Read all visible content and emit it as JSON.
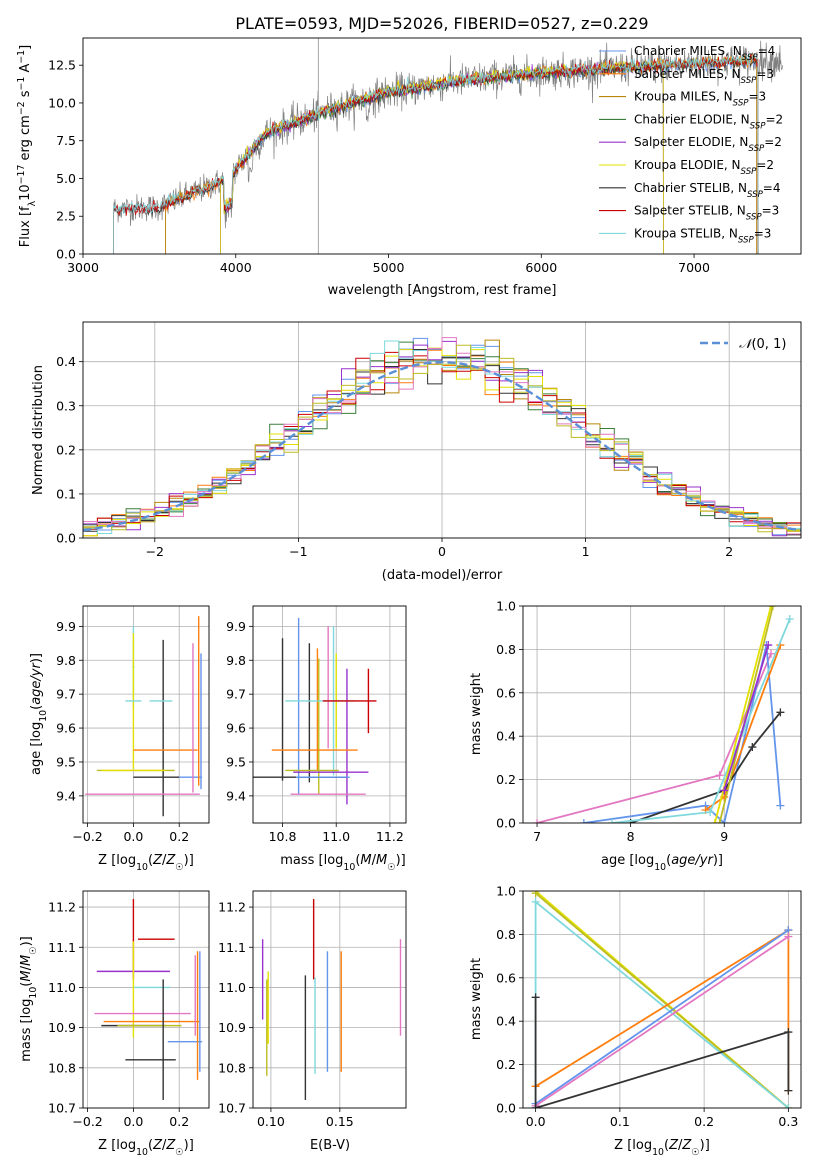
{
  "figure_title": "PLATE=0593, MJD=52026, FIBERID=0527, z=0.229",
  "chart_data": [
    {
      "id": "spectrum",
      "type": "line",
      "title": "PLATE=0593, MJD=52026, FIBERID=0527, z=0.229",
      "xlabel": "wavelength [Angstrom, rest frame]",
      "ylabel": "Flux [fλ 10⁻¹⁷ erg cm⁻² s⁻¹ A⁻¹]",
      "xlim": [
        3000,
        7700
      ],
      "ylim": [
        0,
        14.3
      ],
      "xticks": [
        3000,
        4000,
        5000,
        6000,
        7000
      ],
      "yticks": [
        0.0,
        2.5,
        5.0,
        7.5,
        10.0,
        12.5
      ],
      "grid": false,
      "legend_position": "upper-right",
      "series": [
        {
          "name": "Chabrier MILES, N_SSP=4",
          "color": "#6495ed",
          "range": [
            3540,
            7410
          ]
        },
        {
          "name": "Salpeter MILES, N_SSP=3",
          "color": "#ff7f0e",
          "range": [
            3540,
            7410
          ]
        },
        {
          "name": "Kroupa MILES, N_SSP=3",
          "color": "#b8860b",
          "range": [
            3540,
            7410
          ]
        },
        {
          "name": "Chabrier ELODIE, N_SSP=2",
          "color": "#3a7d3a",
          "range": [
            3900,
            6800
          ]
        },
        {
          "name": "Salpeter ELODIE, N_SSP=2",
          "color": "#9932cc",
          "range": [
            3900,
            6800
          ]
        },
        {
          "name": "Kroupa ELODIE, N_SSP=2",
          "color": "#e3e000",
          "range": [
            3900,
            6800
          ]
        },
        {
          "name": "Chabrier STELIB, N_SSP=4",
          "color": "#333333",
          "range": [
            3200,
            7420
          ]
        },
        {
          "name": "Salpeter STELIB, N_SSP=3",
          "color": "#cc0000",
          "range": [
            3200,
            7420
          ]
        },
        {
          "name": "Kroupa STELIB, N_SSP=3",
          "color": "#7fd8dc",
          "range": [
            3200,
            7420
          ]
        }
      ],
      "observed": {
        "color": "#808080",
        "range": [
          3200,
          7580
        ]
      },
      "continuum_shape": {
        "x": [
          3200,
          3500,
          3950,
          4200,
          4600,
          5000,
          5500,
          6000,
          6500,
          7000,
          7400
        ],
        "y": [
          3.0,
          3.1,
          5.0,
          8.0,
          9.5,
          10.7,
          11.5,
          12.0,
          12.3,
          12.6,
          12.8
        ]
      }
    },
    {
      "id": "residuals",
      "type": "histogram",
      "xlabel": "(data-model)/error",
      "ylabel": "Normed distribution",
      "xlim": [
        -2.5,
        2.5
      ],
      "ylim": [
        0,
        0.49
      ],
      "xticks": [
        -2,
        -1,
        0,
        1,
        2
      ],
      "yticks": [
        0.0,
        0.1,
        0.2,
        0.3,
        0.4
      ],
      "grid": true,
      "legend_position": "upper-right",
      "reference_curve": {
        "name": "𝒩(0, 1)",
        "color": "#5b8fd6"
      },
      "bin_edges_start": -2.5,
      "bin_width": 0.1,
      "series_colors": [
        "#6495ed",
        "#ff7f0e",
        "#b8860b",
        "#3a7d3a",
        "#9932cc",
        "#e3e000",
        "#333333",
        "#cc0000",
        "#7fd8dc",
        "#e377c2",
        "#bcbd22"
      ]
    },
    {
      "id": "age-vs-Z",
      "type": "errorbar",
      "xlabel": "Z [log10(Z/Z☉)]",
      "ylabel": "age [log10(age/yr)]",
      "xlim": [
        -0.22,
        0.33
      ],
      "ylim": [
        9.32,
        9.96
      ],
      "xticks": [
        -0.2,
        0.0,
        0.2
      ],
      "yticks": [
        9.4,
        9.5,
        9.6,
        9.7,
        9.8,
        9.9
      ],
      "grid": true,
      "points": [
        {
          "x": 0.0,
          "y": 9.78,
          "xerr": 0.005,
          "yerr": 0.12,
          "color": "#7fd8dc"
        },
        {
          "x": 0.0,
          "y": 9.68,
          "xerr": 0.0,
          "yerr": 0.2,
          "color": "#e3e000"
        },
        {
          "x": 0.13,
          "y": 9.6,
          "xerr": 0.0,
          "yerr": 0.26,
          "color": "#333333"
        },
        {
          "x": 0.0,
          "y": 9.68,
          "xerr": 0.035,
          "yerr": 0.0,
          "color": "#7fd8dc"
        },
        {
          "x": 0.12,
          "y": 9.68,
          "xerr": 0.05,
          "yerr": 0.0,
          "color": "#7fd8dc"
        },
        {
          "x": 0.14,
          "y": 9.535,
          "xerr": 0.14,
          "yerr": 0.0,
          "color": "#ff7f0e"
        },
        {
          "x": 0.01,
          "y": 9.475,
          "xerr": 0.17,
          "yerr": 0.0,
          "color": "#bcbd22"
        },
        {
          "x": 0.0,
          "y": 9.475,
          "xerr": 0.14,
          "yerr": 0.0,
          "color": "#e3e000"
        },
        {
          "x": 0.1,
          "y": 9.455,
          "xerr": 0.1,
          "yerr": 0.0,
          "color": "#333333"
        },
        {
          "x": 0.25,
          "y": 9.455,
          "xerr": 0.05,
          "yerr": 0.0,
          "color": "#6495ed"
        },
        {
          "x": 0.04,
          "y": 9.405,
          "xerr": 0.25,
          "yerr": 0.0,
          "color": "#e377c2"
        },
        {
          "x": 0.26,
          "y": 9.63,
          "xerr": 0.0,
          "yerr": 0.22,
          "color": "#e377c2"
        },
        {
          "x": 0.285,
          "y": 9.68,
          "xerr": 0.0,
          "yerr": 0.25,
          "color": "#ff7f0e"
        },
        {
          "x": 0.295,
          "y": 9.62,
          "xerr": 0.0,
          "yerr": 0.2,
          "color": "#6495ed"
        }
      ]
    },
    {
      "id": "age-vs-mass",
      "type": "errorbar",
      "xlabel": "mass [log10(M/M☉)]",
      "ylabel": "",
      "xlim": [
        10.69,
        11.26
      ],
      "ylim": [
        9.32,
        9.96
      ],
      "xticks": [
        10.8,
        11.0,
        11.2
      ],
      "yticks": [
        9.4,
        9.5,
        9.6,
        9.7,
        9.8,
        9.9
      ],
      "grid": true,
      "points": [
        {
          "x": 10.8,
          "y": 9.655,
          "xerr": 0.0,
          "yerr": 0.21,
          "color": "#333333"
        },
        {
          "x": 10.86,
          "y": 9.665,
          "xerr": 0.0,
          "yerr": 0.26,
          "color": "#6495ed"
        },
        {
          "x": 10.9,
          "y": 9.645,
          "xerr": 0.0,
          "yerr": 0.205,
          "color": "#333333"
        },
        {
          "x": 10.93,
          "y": 9.655,
          "xerr": 0.0,
          "yerr": 0.18,
          "color": "#ff7f0e"
        },
        {
          "x": 10.935,
          "y": 9.605,
          "xerr": 0.0,
          "yerr": 0.2,
          "color": "#bcbd22"
        },
        {
          "x": 10.97,
          "y": 9.72,
          "xerr": 0.0,
          "yerr": 0.18,
          "color": "#e377c2"
        },
        {
          "x": 10.99,
          "y": 9.68,
          "xerr": 0.0,
          "yerr": 0.22,
          "color": "#7fd8dc"
        },
        {
          "x": 11.0,
          "y": 9.68,
          "xerr": 0.0,
          "yerr": 0.14,
          "color": "#e3e000"
        },
        {
          "x": 11.04,
          "y": 9.575,
          "xerr": 0.0,
          "yerr": 0.2,
          "color": "#9932cc"
        },
        {
          "x": 11.12,
          "y": 9.68,
          "xerr": 0.0,
          "yerr": 0.095,
          "color": "#cc0000"
        },
        {
          "x": 10.94,
          "y": 9.68,
          "xerr": 0.13,
          "yerr": 0.0,
          "color": "#7fd8dc"
        },
        {
          "x": 11.05,
          "y": 9.68,
          "xerr": 0.1,
          "yerr": 0.0,
          "color": "#cc0000"
        },
        {
          "x": 10.92,
          "y": 9.535,
          "xerr": 0.16,
          "yerr": 0.0,
          "color": "#ff7f0e"
        },
        {
          "x": 10.98,
          "y": 9.47,
          "xerr": 0.14,
          "yerr": 0.0,
          "color": "#9932cc"
        },
        {
          "x": 10.91,
          "y": 9.475,
          "xerr": 0.1,
          "yerr": 0.0,
          "color": "#bcbd22"
        },
        {
          "x": 10.86,
          "y": 9.455,
          "xerr": 0.18,
          "yerr": 0.0,
          "color": "#333333"
        },
        {
          "x": 10.95,
          "y": 9.455,
          "xerr": 0.1,
          "yerr": 0.0,
          "color": "#6495ed"
        },
        {
          "x": 10.97,
          "y": 9.405,
          "xerr": 0.14,
          "yerr": 0.0,
          "color": "#e377c2"
        }
      ]
    },
    {
      "id": "weight-vs-age",
      "type": "line",
      "xlabel": "age [log10(age/yr)]",
      "ylabel": "mass weight",
      "xlim": [
        6.85,
        9.82
      ],
      "ylim": [
        0,
        1.0
      ],
      "xticks": [
        7,
        8,
        9
      ],
      "yticks": [
        0.0,
        0.2,
        0.4,
        0.6,
        0.8,
        1.0
      ],
      "grid": true,
      "series": [
        {
          "color": "#e377c2",
          "x": [
            7.0,
            8.95,
            9.5
          ],
          "y": [
            0.0,
            0.22,
            0.78
          ]
        },
        {
          "color": "#6495ed",
          "x": [
            7.5,
            8.8,
            9.0,
            9.45,
            9.6
          ],
          "y": [
            0.0,
            0.08,
            0.0,
            0.82,
            0.08
          ]
        },
        {
          "color": "#ff7f0e",
          "x": [
            8.8,
            9.0,
            9.6
          ],
          "y": [
            0.06,
            0.12,
            0.82
          ]
        },
        {
          "color": "#333333",
          "x": [
            8.0,
            9.0,
            9.3,
            9.6
          ],
          "y": [
            0.0,
            0.15,
            0.35,
            0.51
          ]
        },
        {
          "color": "#7fd8dc",
          "x": [
            7.8,
            8.85,
            9.2,
            9.7
          ],
          "y": [
            0.0,
            0.05,
            0.42,
            0.94
          ]
        },
        {
          "color": "#e3e000",
          "x": [
            8.9,
            9.5
          ],
          "y": [
            0.0,
            1.0
          ]
        },
        {
          "color": "#bcbd22",
          "x": [
            8.95,
            9.52
          ],
          "y": [
            0.0,
            1.0
          ]
        },
        {
          "color": "#9932cc",
          "x": [
            9.0,
            9.47
          ],
          "y": [
            0.15,
            0.82
          ]
        }
      ]
    },
    {
      "id": "mass-vs-Z",
      "type": "errorbar",
      "xlabel": "Z [log10(Z/Z☉)]",
      "ylabel": "mass [log10(M/M☉)]",
      "xlim": [
        -0.22,
        0.33
      ],
      "ylim": [
        10.7,
        11.24
      ],
      "xticks": [
        -0.2,
        0.0,
        0.2
      ],
      "yticks": [
        10.7,
        10.8,
        10.9,
        11.0,
        11.1,
        11.2
      ],
      "grid": true,
      "points": [
        {
          "x": 0.0,
          "y": 11.12,
          "xerr": 0.0,
          "yerr": 0.1,
          "color": "#cc0000"
        },
        {
          "x": 0.1,
          "y": 11.12,
          "xerr": 0.08,
          "yerr": 0.0,
          "color": "#cc0000"
        },
        {
          "x": 0.0,
          "y": 11.04,
          "xerr": 0.16,
          "yerr": 0.0,
          "color": "#9932cc"
        },
        {
          "x": 0.08,
          "y": 11.0,
          "xerr": 0.08,
          "yerr": 0.0,
          "color": "#7fd8dc"
        },
        {
          "x": 0.0,
          "y": 10.995,
          "xerr": 0.0,
          "yerr": 0.12,
          "color": "#e3e000"
        },
        {
          "x": 0.04,
          "y": 10.935,
          "xerr": 0.21,
          "yerr": 0.0,
          "color": "#e377c2"
        },
        {
          "x": 0.08,
          "y": 10.915,
          "xerr": 0.21,
          "yerr": 0.0,
          "color": "#ff7f0e"
        },
        {
          "x": 0.0,
          "y": 10.905,
          "xerr": 0.14,
          "yerr": 0.0,
          "color": "#333333"
        },
        {
          "x": 0.07,
          "y": 10.905,
          "xerr": 0.14,
          "yerr": 0.0,
          "color": "#bcbd22"
        },
        {
          "x": 0.225,
          "y": 10.865,
          "xerr": 0.075,
          "yerr": 0.0,
          "color": "#6495ed"
        },
        {
          "x": 0.075,
          "y": 10.82,
          "xerr": 0.11,
          "yerr": 0.0,
          "color": "#333333"
        },
        {
          "x": 0.13,
          "y": 10.87,
          "xerr": 0.0,
          "yerr": 0.15,
          "color": "#333333"
        },
        {
          "x": 0.28,
          "y": 10.93,
          "xerr": 0.0,
          "yerr": 0.16,
          "color": "#ff7f0e"
        },
        {
          "x": 0.29,
          "y": 10.94,
          "xerr": 0.0,
          "yerr": 0.15,
          "color": "#6495ed"
        },
        {
          "x": 0.27,
          "y": 10.98,
          "xerr": 0.0,
          "yerr": 0.1,
          "color": "#e377c2"
        }
      ]
    },
    {
      "id": "mass-vs-ebv",
      "type": "errorbar",
      "xlabel": "E(B-V)",
      "ylabel": "",
      "xlim": [
        0.087,
        0.198
      ],
      "ylim": [
        10.7,
        11.24
      ],
      "xticks": [
        0.1,
        0.15
      ],
      "yticks": [
        10.7,
        10.8,
        10.9,
        11.0,
        11.1,
        11.2
      ],
      "grid": true,
      "points": [
        {
          "x": 0.094,
          "y": 11.02,
          "xerr": 0.0,
          "yerr": 0.1,
          "color": "#9932cc"
        },
        {
          "x": 0.097,
          "y": 10.9,
          "xerr": 0.0,
          "yerr": 0.12,
          "color": "#bcbd22"
        },
        {
          "x": 0.098,
          "y": 10.95,
          "xerr": 0.0,
          "yerr": 0.09,
          "color": "#e3e000"
        },
        {
          "x": 0.125,
          "y": 10.875,
          "xerr": 0.0,
          "yerr": 0.155,
          "color": "#333333"
        },
        {
          "x": 0.131,
          "y": 11.12,
          "xerr": 0.0,
          "yerr": 0.1,
          "color": "#cc0000"
        },
        {
          "x": 0.132,
          "y": 10.905,
          "xerr": 0.0,
          "yerr": 0.12,
          "color": "#7fd8dc"
        },
        {
          "x": 0.141,
          "y": 10.94,
          "xerr": 0.0,
          "yerr": 0.15,
          "color": "#6495ed"
        },
        {
          "x": 0.151,
          "y": 10.94,
          "xerr": 0.0,
          "yerr": 0.15,
          "color": "#ff7f0e"
        },
        {
          "x": 0.194,
          "y": 11.0,
          "xerr": 0.0,
          "yerr": 0.12,
          "color": "#e377c2"
        }
      ]
    },
    {
      "id": "weight-vs-Z",
      "type": "line",
      "xlabel": "Z [log10(Z/Z☉)]",
      "ylabel": "mass weight",
      "xlim": [
        -0.015,
        0.315
      ],
      "ylim": [
        0,
        1.0
      ],
      "xticks": [
        0.0,
        0.1,
        0.2,
        0.3
      ],
      "yticks": [
        0.0,
        0.2,
        0.4,
        0.6,
        0.8,
        1.0
      ],
      "grid": true,
      "series": [
        {
          "color": "#e3e000",
          "x": [
            0.0,
            0.3
          ],
          "y": [
            1.0,
            0.0
          ]
        },
        {
          "color": "#bcbd22",
          "x": [
            0.0,
            0.3
          ],
          "y": [
            0.99,
            0.0
          ]
        },
        {
          "color": "#7fd8dc",
          "x": [
            0.0,
            0.0,
            0.3
          ],
          "y": [
            0.0,
            0.95,
            0.0
          ]
        },
        {
          "color": "#ff7f0e",
          "x": [
            0.0,
            0.3,
            0.3
          ],
          "y": [
            0.1,
            0.82,
            0.08
          ]
        },
        {
          "color": "#6495ed",
          "x": [
            0.0,
            0.3
          ],
          "y": [
            0.02,
            0.82
          ]
        },
        {
          "color": "#e377c2",
          "x": [
            0.0,
            0.3
          ],
          "y": [
            0.01,
            0.79
          ]
        },
        {
          "color": "#333333",
          "x": [
            0.0,
            0.3,
            0.3
          ],
          "y": [
            0.0,
            0.35,
            0.08
          ]
        },
        {
          "color": "#333333",
          "x": [
            0.0,
            0.0
          ],
          "y": [
            0.0,
            0.51
          ]
        }
      ]
    }
  ]
}
